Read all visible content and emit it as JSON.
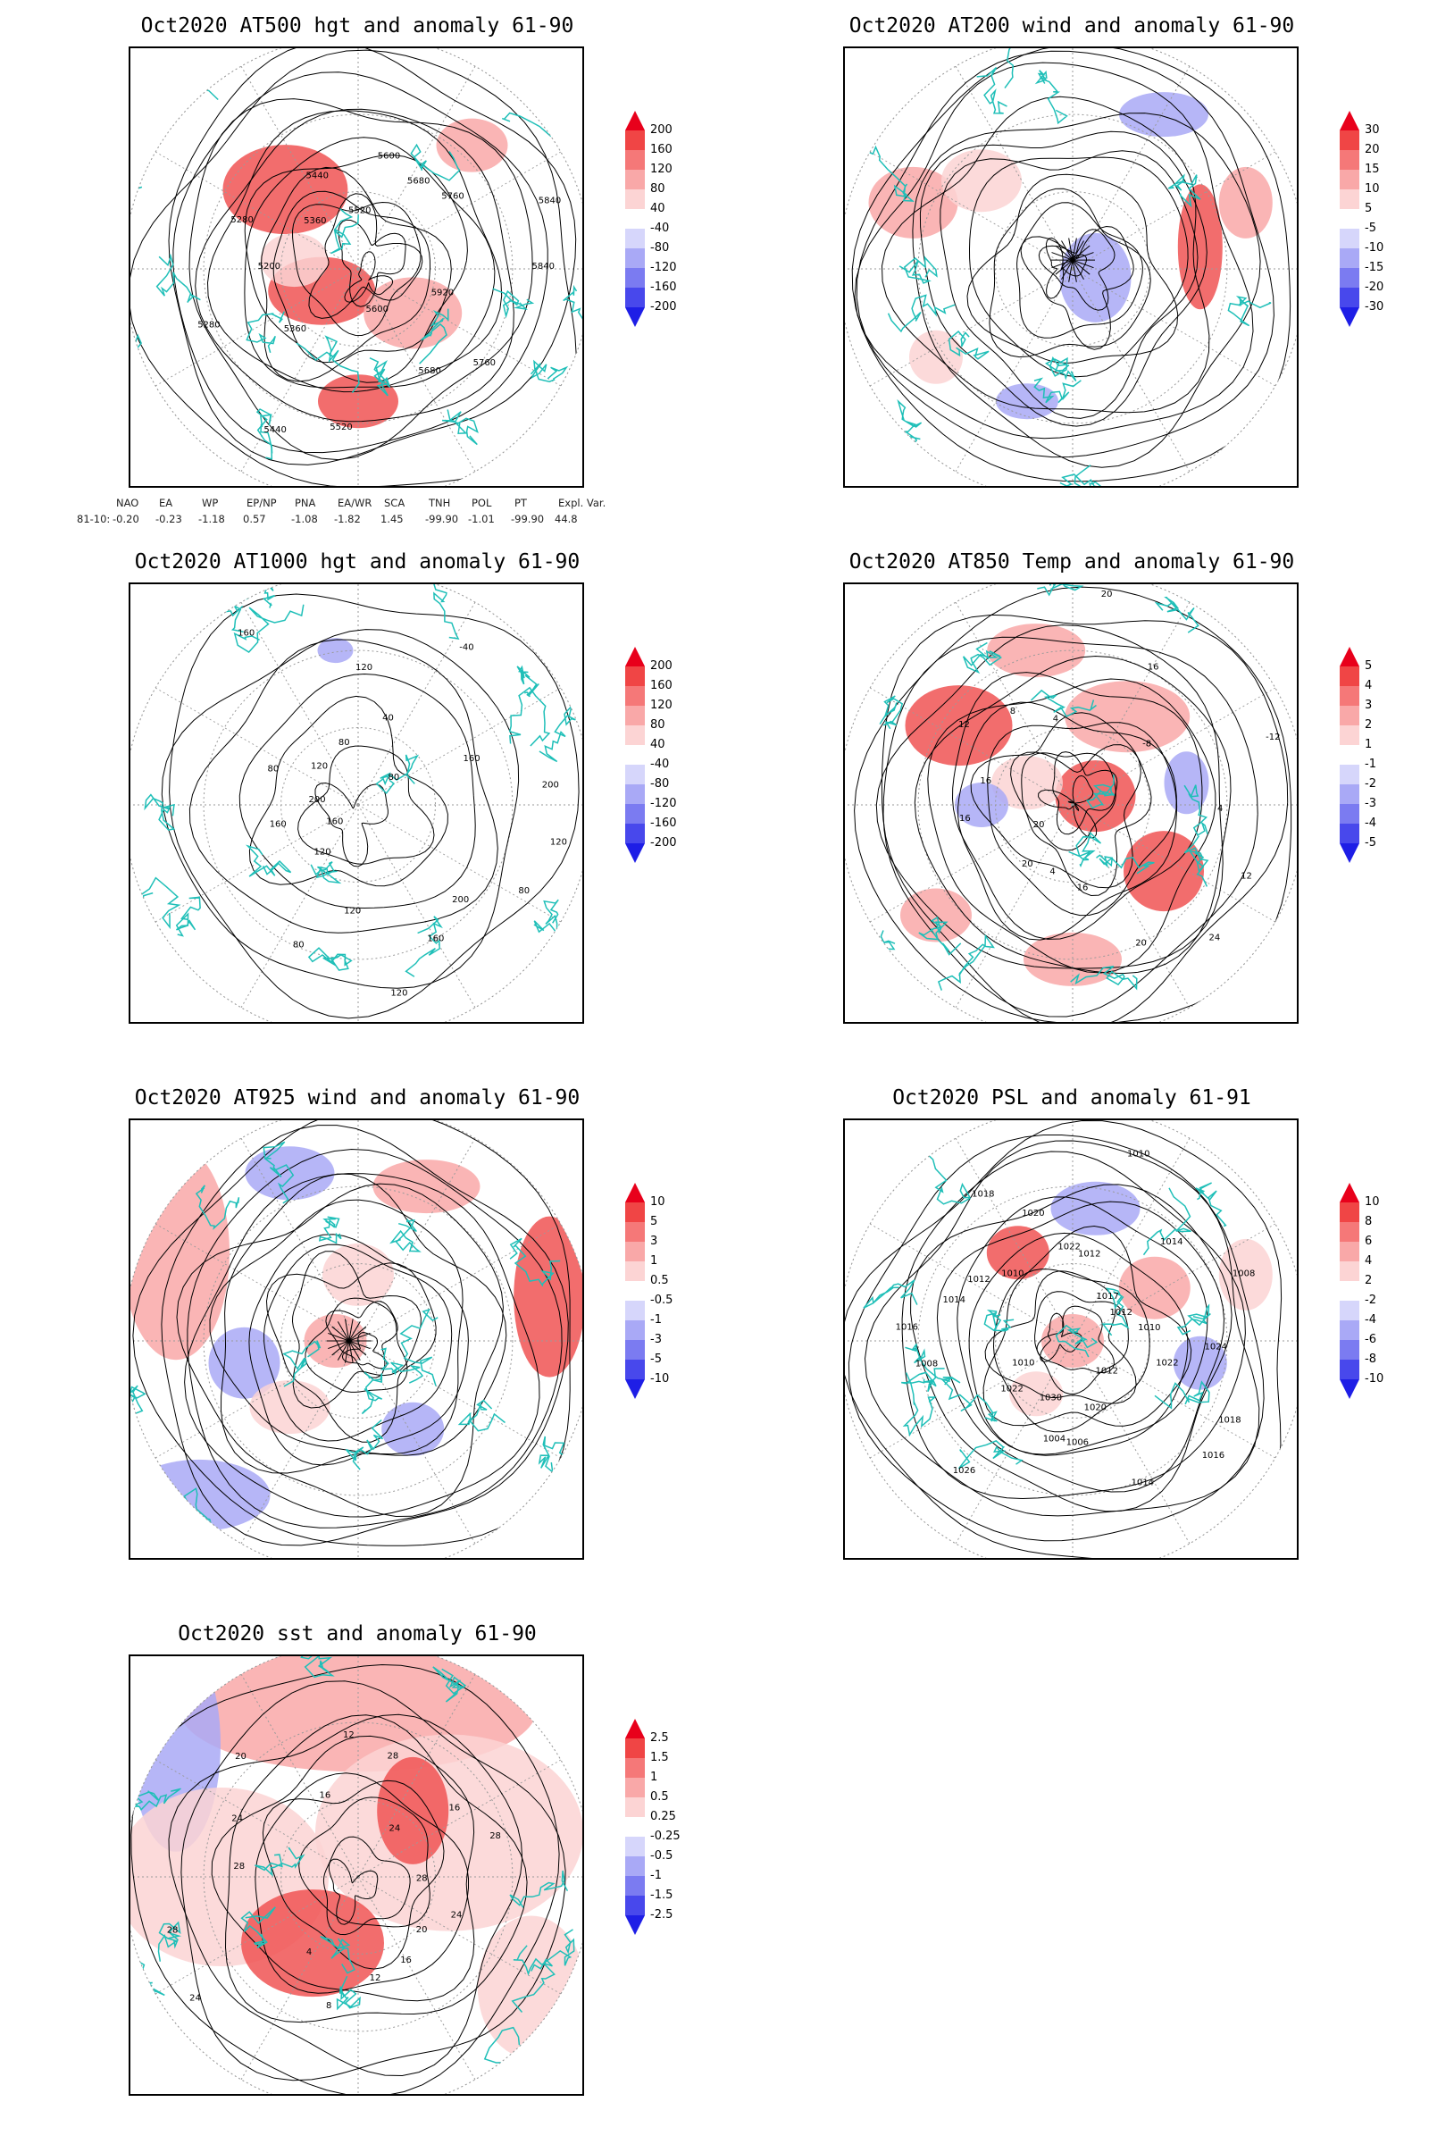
{
  "panels": [
    {
      "id": "at500",
      "title": "Oct2020 AT500 hgt and anomaly 61-90",
      "colorbar": {
        "labels": [
          "200",
          "160",
          "120",
          "80",
          "40",
          "-40",
          "-80",
          "-120",
          "-160",
          "-200"
        ],
        "colors": [
          "#e8001b",
          "#f04545",
          "#f57878",
          "#f9a8a8",
          "#fcd4d4",
          "#ffffff",
          "#d6d6fb",
          "#a9a9f6",
          "#7b7bf1",
          "#4848ec",
          "#1e1ee6"
        ]
      },
      "contour_labels": [
        "5840",
        "5920",
        "5760",
        "5680",
        "5600",
        "5520",
        "5440",
        "5360",
        "5280",
        "5200",
        "5280",
        "5360",
        "5440",
        "5520",
        "5600",
        "5680",
        "5760",
        "5840"
      ]
    },
    {
      "id": "at200",
      "title": "Oct2020 AT200 wind and anomaly 61-90",
      "colorbar": {
        "labels": [
          "30",
          "20",
          "15",
          "10",
          "5",
          "-5",
          "-10",
          "-15",
          "-20",
          "-30"
        ],
        "colors": [
          "#e8001b",
          "#f04545",
          "#f57878",
          "#f9a8a8",
          "#fcd4d4",
          "#ffffff",
          "#d6d6fb",
          "#a9a9f6",
          "#7b7bf1",
          "#4848ec",
          "#1e1ee6"
        ]
      },
      "contour_labels": []
    },
    {
      "id": "at1000",
      "title": "Oct2020 AT1000 hgt and anomaly 61-90",
      "colorbar": {
        "labels": [
          "200",
          "160",
          "120",
          "80",
          "40",
          "-40",
          "-80",
          "-120",
          "-160",
          "-200"
        ],
        "colors": [
          "#e8001b",
          "#f04545",
          "#f57878",
          "#f9a8a8",
          "#fcd4d4",
          "#ffffff",
          "#d6d6fb",
          "#a9a9f6",
          "#7b7bf1",
          "#4848ec",
          "#1e1ee6"
        ]
      },
      "contour_labels": [
        "80",
        "120",
        "160",
        "160",
        "200",
        "80",
        "120",
        "160",
        "80",
        "120",
        "40",
        "-40",
        "80",
        "160",
        "200",
        "120",
        "80",
        "200",
        "160",
        "120",
        "120"
      ]
    },
    {
      "id": "at850",
      "title": "Oct2020 AT850 Temp and anomaly 61-90",
      "colorbar": {
        "labels": [
          "5",
          "4",
          "3",
          "2",
          "1",
          "-1",
          "-2",
          "-3",
          "-4",
          "-5"
        ],
        "colors": [
          "#e8001b",
          "#f04545",
          "#f57878",
          "#f9a8a8",
          "#fcd4d4",
          "#ffffff",
          "#d6d6fb",
          "#a9a9f6",
          "#7b7bf1",
          "#4848ec",
          "#1e1ee6"
        ]
      },
      "contour_labels": [
        "16",
        "16",
        "12",
        "8",
        "4",
        "20",
        "16",
        "-8",
        "-12",
        "4",
        "12",
        "24",
        "20",
        "16",
        "4",
        "20",
        "20"
      ]
    },
    {
      "id": "at925",
      "title": "Oct2020 AT925 wind and anomaly 61-90",
      "colorbar": {
        "labels": [
          "10",
          "5",
          "3",
          "1",
          "0.5",
          "-0.5",
          "-1",
          "-3",
          "-5",
          "-10"
        ],
        "colors": [
          "#e8001b",
          "#f04545",
          "#f57878",
          "#f9a8a8",
          "#fcd4d4",
          "#ffffff",
          "#d6d6fb",
          "#a9a9f6",
          "#7b7bf1",
          "#4848ec",
          "#1e1ee6"
        ]
      },
      "contour_labels": []
    },
    {
      "id": "psl",
      "title": "Oct2020 PSL and anomaly 61-91",
      "colorbar": {
        "labels": [
          "10",
          "8",
          "6",
          "4",
          "2",
          "-2",
          "-4",
          "-6",
          "-8",
          "-10"
        ],
        "colors": [
          "#e8001b",
          "#f04545",
          "#f57878",
          "#f9a8a8",
          "#fcd4d4",
          "#ffffff",
          "#d6d6fb",
          "#a9a9f6",
          "#7b7bf1",
          "#4848ec",
          "#1e1ee6"
        ]
      },
      "contour_labels": [
        "1010",
        "1017",
        "1014",
        "1012",
        "1008",
        "1010",
        "1024",
        "1022",
        "1018",
        "1016",
        "1012",
        "1014",
        "1020",
        "1006",
        "1004",
        "1030",
        "1026",
        "1022",
        "1010",
        "1008",
        "1016",
        "1014",
        "1012",
        "1010",
        "1018",
        "1020",
        "1022",
        "1012"
      ]
    },
    {
      "id": "sst",
      "title": "Oct2020 sst and anomaly 61-90",
      "colorbar": {
        "labels": [
          "2.5",
          "1.5",
          "1",
          "0.5",
          "0.25",
          "-0.25",
          "-0.5",
          "-1",
          "-1.5",
          "-2.5"
        ],
        "colors": [
          "#e8001b",
          "#f04545",
          "#f57878",
          "#f9a8a8",
          "#fcd4d4",
          "#ffffff",
          "#d6d6fb",
          "#a9a9f6",
          "#7b7bf1",
          "#4848ec",
          "#1e1ee6"
        ]
      },
      "contour_labels": [
        "28",
        "28",
        "24",
        "20",
        "16",
        "12",
        "8",
        "4",
        "24",
        "28",
        "28",
        "24",
        "20",
        "16",
        "12",
        "28",
        "24",
        "16"
      ]
    }
  ],
  "teleconnections": {
    "headers": [
      "NAO",
      "EA",
      "WP",
      "EP/NP",
      "PNA",
      "EA/WR",
      "SCA",
      "TNH",
      "POL",
      "PT",
      "Expl. Var."
    ],
    "row_label": "81-10:",
    "values": [
      "-0.20",
      "-0.23",
      "-1.18",
      "0.57",
      "-1.08",
      "-1.82",
      "1.45",
      "-99.90",
      "-1.01",
      "-99.90",
      "44.8"
    ]
  },
  "colors": {
    "coastline": "#1fbfb8",
    "contour": "#000000",
    "grid": "#9a9a9a"
  }
}
